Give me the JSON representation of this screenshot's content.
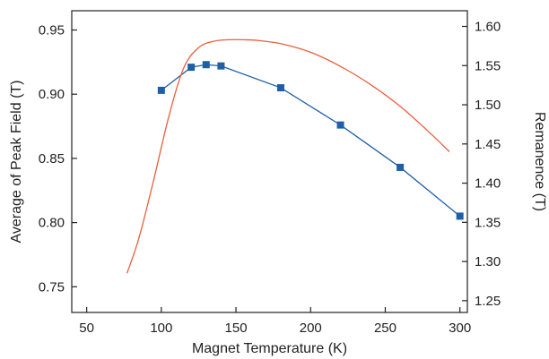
{
  "chart_data": {
    "type": "line",
    "title": "",
    "xlabel": "Magnet Temperature (K)",
    "ylabel_left": "Average of Peak Field (T)",
    "ylabel_right": "Remanence (T)",
    "xlim": [
      40,
      305
    ],
    "ylim_left": [
      0.73,
      0.965
    ],
    "ylim_right": [
      1.235,
      1.62
    ],
    "x_ticks": [
      50,
      100,
      150,
      200,
      250,
      300
    ],
    "x_tick_labels": [
      "50",
      "100",
      "150",
      "200",
      "250",
      "300"
    ],
    "y_left_ticks": [
      0.75,
      0.8,
      0.85,
      0.9,
      0.95
    ],
    "y_left_tick_labels": [
      "0.75",
      "0.80",
      "0.85",
      "0.90",
      "0.95"
    ],
    "y_right_ticks": [
      1.25,
      1.3,
      1.35,
      1.4,
      1.45,
      1.5,
      1.55,
      1.6
    ],
    "y_right_tick_labels": [
      "1.25",
      "1.30",
      "1.35",
      "1.40",
      "1.45",
      "1.50",
      "1.55",
      "1.60"
    ],
    "grid": false,
    "series": [
      {
        "axis": "left",
        "color": "#1f5fa8",
        "marker": "square",
        "x": [
          100,
          120,
          130,
          140,
          180,
          220,
          260,
          300
        ],
        "y": [
          0.903,
          0.921,
          0.923,
          0.922,
          0.905,
          0.876,
          0.843,
          0.805
        ]
      },
      {
        "axis": "right",
        "color": "#e8603c",
        "marker": "none",
        "x": [
          77,
          85,
          95,
          105,
          115,
          125,
          135,
          145,
          155,
          165,
          180,
          200,
          220,
          240,
          260,
          280,
          293
        ],
        "y": [
          1.285,
          1.33,
          1.405,
          1.485,
          1.547,
          1.573,
          1.581,
          1.583,
          1.583,
          1.582,
          1.578,
          1.567,
          1.549,
          1.526,
          1.498,
          1.464,
          1.44
        ]
      }
    ]
  }
}
